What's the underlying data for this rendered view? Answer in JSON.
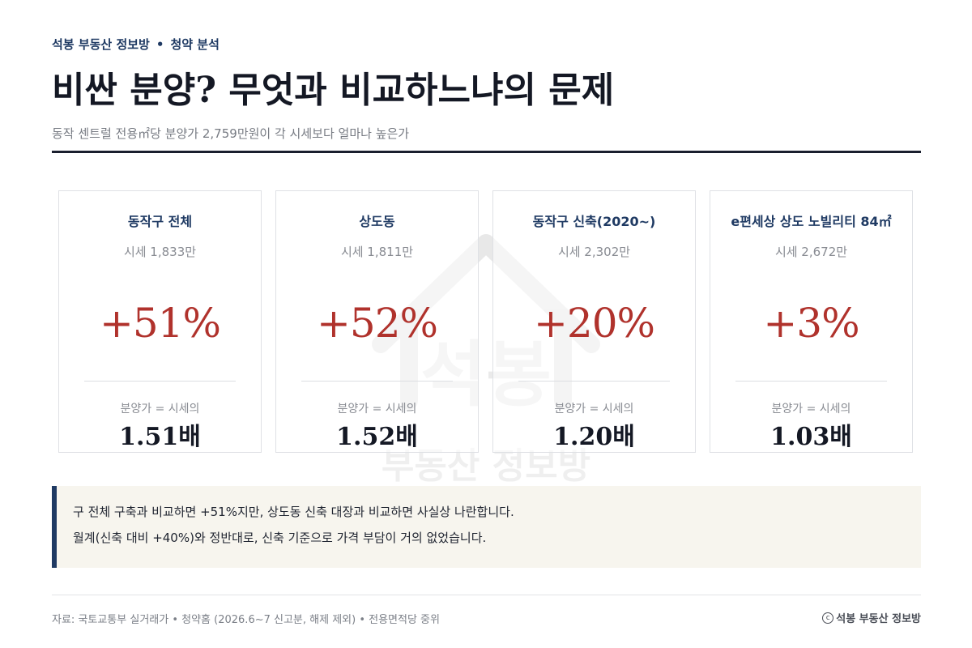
{
  "header": {
    "brand": "석봉 부동산 정보방",
    "separator": "•",
    "section": "청약 분석",
    "title": "비싼 분양? 무엇과 비교하느냐의 문제",
    "subtitle": "동작 센트럴 전용㎡당 분양가 2,759만원이 각 시세보다 얼마나 높은가"
  },
  "watermark": {
    "line1": "석봉",
    "line2": "부동산 정보방"
  },
  "cards": [
    {
      "name": "동작구 전체",
      "price": "시세 1,833만",
      "pct": "+51%",
      "ratio_label": "분양가 = 시세의",
      "ratio": "1.51배"
    },
    {
      "name": "상도동",
      "price": "시세 1,811만",
      "pct": "+52%",
      "ratio_label": "분양가 = 시세의",
      "ratio": "1.52배"
    },
    {
      "name": "동작구 신축(2020~)",
      "price": "시세 2,302만",
      "pct": "+20%",
      "ratio_label": "분양가 = 시세의",
      "ratio": "1.20배"
    },
    {
      "name": "e편세상 상도 노빌리티 84㎡",
      "price": "시세 2,672만",
      "pct": "+3%",
      "ratio_label": "분양가 = 시세의",
      "ratio": "1.03배"
    }
  ],
  "note": {
    "line1": "구 전체 구축과 비교하면 +51%지만, 상도동 신축 대장과 비교하면 사실상 나란합니다.",
    "line2": "월계(신축 대비 +40%)와 정반대로, 신축 기준으로 가격 부담이 거의 없었습니다."
  },
  "footer": {
    "source": "자료: 국토교통부 실거래가 • 청약홈 (2026.6~7 신고분, 해제 제외) • 전용면적당 중위",
    "copyright_symbol": "c",
    "brand": "석봉 부동산 정보방"
  },
  "colors": {
    "accent_navy": "#1f3a63",
    "accent_red": "#b0322c",
    "note_bg": "#f7f5ee"
  }
}
